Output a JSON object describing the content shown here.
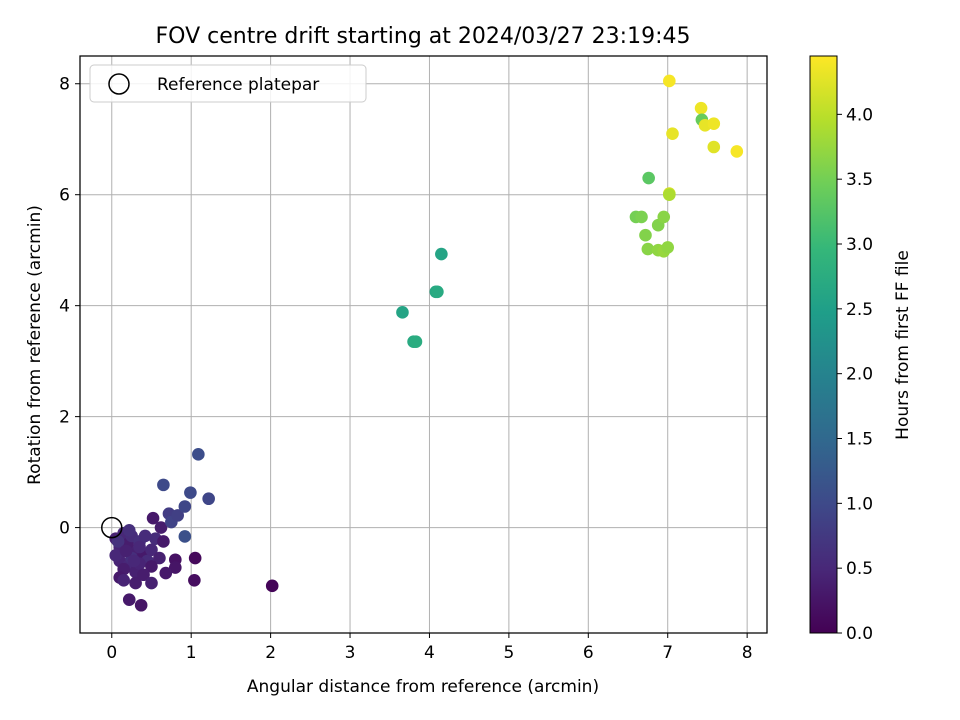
{
  "chart_data": {
    "type": "scatter",
    "title": "FOV centre drift starting at 2024/03/27 23:19:45",
    "xlabel": "Angular distance from reference (arcmin)",
    "ylabel": "Rotation from reference (arcmin)",
    "xlim": [
      -0.4,
      8.25
    ],
    "ylim": [
      -1.9,
      8.5
    ],
    "xticks": [
      "0",
      "1",
      "2",
      "3",
      "4",
      "5",
      "6",
      "7",
      "8"
    ],
    "yticks": [
      "0",
      "2",
      "4",
      "6",
      "8"
    ],
    "grid": true,
    "legend": {
      "position": "top-left",
      "entries": [
        "Reference platepar"
      ]
    },
    "reference_point": {
      "x": 0,
      "y": 0
    },
    "colorbar": {
      "label": "Hours from first FF file",
      "min": 0.0,
      "max": 4.45,
      "ticks": [
        "0.0",
        "0.5",
        "1.0",
        "1.5",
        "2.0",
        "2.5",
        "3.0",
        "3.5",
        "4.0"
      ],
      "colormap": [
        "#440154",
        "#482878",
        "#3e4989",
        "#31688e",
        "#26828e",
        "#1f9e89",
        "#35b779",
        "#6ece58",
        "#b5de2b",
        "#fde725"
      ]
    },
    "points": [
      {
        "x": 0.05,
        "y": -0.2,
        "h": 0.4
      },
      {
        "x": 0.1,
        "y": -0.35,
        "h": 0.45
      },
      {
        "x": 0.15,
        "y": -0.1,
        "h": 0.5
      },
      {
        "x": 0.2,
        "y": -0.3,
        "h": 0.35
      },
      {
        "x": 0.25,
        "y": -0.15,
        "h": 0.55
      },
      {
        "x": 0.3,
        "y": -0.45,
        "h": 0.4
      },
      {
        "x": 0.35,
        "y": -0.25,
        "h": 0.6
      },
      {
        "x": 0.4,
        "y": -0.5,
        "h": 0.3
      },
      {
        "x": 0.1,
        "y": -0.6,
        "h": 0.45
      },
      {
        "x": 0.2,
        "y": -0.7,
        "h": 0.5
      },
      {
        "x": 0.3,
        "y": -0.8,
        "h": 0.4
      },
      {
        "x": 0.45,
        "y": -0.6,
        "h": 0.55
      },
      {
        "x": 0.05,
        "y": -0.5,
        "h": 0.5
      },
      {
        "x": 0.15,
        "y": -0.75,
        "h": 0.35
      },
      {
        "x": 0.25,
        "y": -0.55,
        "h": 0.6
      },
      {
        "x": 0.35,
        "y": -0.65,
        "h": 0.45
      },
      {
        "x": 0.5,
        "y": -0.4,
        "h": 0.5
      },
      {
        "x": 0.55,
        "y": -0.2,
        "h": 0.55
      },
      {
        "x": 0.6,
        "y": -0.55,
        "h": 0.4
      },
      {
        "x": 0.1,
        "y": -0.9,
        "h": 0.3
      },
      {
        "x": 0.3,
        "y": -1.0,
        "h": 0.35
      },
      {
        "x": 0.15,
        "y": -0.95,
        "h": 0.45
      },
      {
        "x": 0.22,
        "y": -0.05,
        "h": 0.6
      },
      {
        "x": 0.08,
        "y": -0.25,
        "h": 0.65
      },
      {
        "x": 0.35,
        "y": -0.35,
        "h": 0.5
      },
      {
        "x": 0.42,
        "y": -0.15,
        "h": 0.55
      },
      {
        "x": 0.18,
        "y": -0.42,
        "h": 0.4
      },
      {
        "x": 0.28,
        "y": -0.6,
        "h": 0.5
      },
      {
        "x": 0.5,
        "y": -0.7,
        "h": 0.3
      },
      {
        "x": 0.4,
        "y": -0.85,
        "h": 0.35
      },
      {
        "x": 0.22,
        "y": -1.3,
        "h": 0.3
      },
      {
        "x": 0.37,
        "y": -1.4,
        "h": 0.25
      },
      {
        "x": 0.5,
        "y": -1.0,
        "h": 0.4
      },
      {
        "x": 0.62,
        "y": -0.0,
        "h": 0.35
      },
      {
        "x": 0.65,
        "y": -0.25,
        "h": 0.3
      },
      {
        "x": 0.52,
        "y": 0.17,
        "h": 0.3
      },
      {
        "x": 0.8,
        "y": -0.58,
        "h": 0.2
      },
      {
        "x": 0.8,
        "y": -0.72,
        "h": 0.25
      },
      {
        "x": 0.68,
        "y": -0.82,
        "h": 0.3
      },
      {
        "x": 1.05,
        "y": -0.55,
        "h": 0.1
      },
      {
        "x": 1.04,
        "y": -0.95,
        "h": 0.15
      },
      {
        "x": 2.02,
        "y": -1.05,
        "h": 0.05
      },
      {
        "x": 0.72,
        "y": 0.25,
        "h": 0.8
      },
      {
        "x": 0.75,
        "y": 0.1,
        "h": 0.9
      },
      {
        "x": 0.83,
        "y": 0.22,
        "h": 0.85
      },
      {
        "x": 0.65,
        "y": 0.77,
        "h": 1.0
      },
      {
        "x": 0.92,
        "y": 0.38,
        "h": 0.95
      },
      {
        "x": 0.92,
        "y": -0.16,
        "h": 1.1
      },
      {
        "x": 0.99,
        "y": 0.63,
        "h": 1.0
      },
      {
        "x": 1.09,
        "y": 1.32,
        "h": 1.05
      },
      {
        "x": 1.22,
        "y": 0.52,
        "h": 0.95
      },
      {
        "x": 3.66,
        "y": 3.88,
        "h": 2.6
      },
      {
        "x": 3.8,
        "y": 3.35,
        "h": 2.7
      },
      {
        "x": 3.83,
        "y": 3.35,
        "h": 2.75
      },
      {
        "x": 4.08,
        "y": 4.25,
        "h": 2.65
      },
      {
        "x": 4.1,
        "y": 4.25,
        "h": 2.7
      },
      {
        "x": 4.15,
        "y": 4.93,
        "h": 2.6
      },
      {
        "x": 6.6,
        "y": 5.6,
        "h": 3.5
      },
      {
        "x": 6.67,
        "y": 5.6,
        "h": 3.55
      },
      {
        "x": 6.72,
        "y": 5.27,
        "h": 3.6
      },
      {
        "x": 6.75,
        "y": 5.02,
        "h": 3.65
      },
      {
        "x": 6.76,
        "y": 6.3,
        "h": 3.3
      },
      {
        "x": 6.88,
        "y": 5.45,
        "h": 3.6
      },
      {
        "x": 6.88,
        "y": 5.0,
        "h": 3.7
      },
      {
        "x": 6.95,
        "y": 5.6,
        "h": 3.65
      },
      {
        "x": 6.95,
        "y": 4.98,
        "h": 3.75
      },
      {
        "x": 7.0,
        "y": 5.05,
        "h": 3.7
      },
      {
        "x": 7.02,
        "y": 6.02,
        "h": 4.2
      },
      {
        "x": 7.02,
        "y": 6.0,
        "h": 3.9
      },
      {
        "x": 7.02,
        "y": 8.05,
        "h": 4.4
      },
      {
        "x": 7.06,
        "y": 7.1,
        "h": 4.3
      },
      {
        "x": 7.42,
        "y": 7.56,
        "h": 4.35
      },
      {
        "x": 7.43,
        "y": 7.35,
        "h": 3.4
      },
      {
        "x": 7.47,
        "y": 7.25,
        "h": 4.3
      },
      {
        "x": 7.58,
        "y": 7.28,
        "h": 4.35
      },
      {
        "x": 7.58,
        "y": 6.86,
        "h": 4.25
      },
      {
        "x": 7.87,
        "y": 6.78,
        "h": 4.4
      }
    ]
  }
}
